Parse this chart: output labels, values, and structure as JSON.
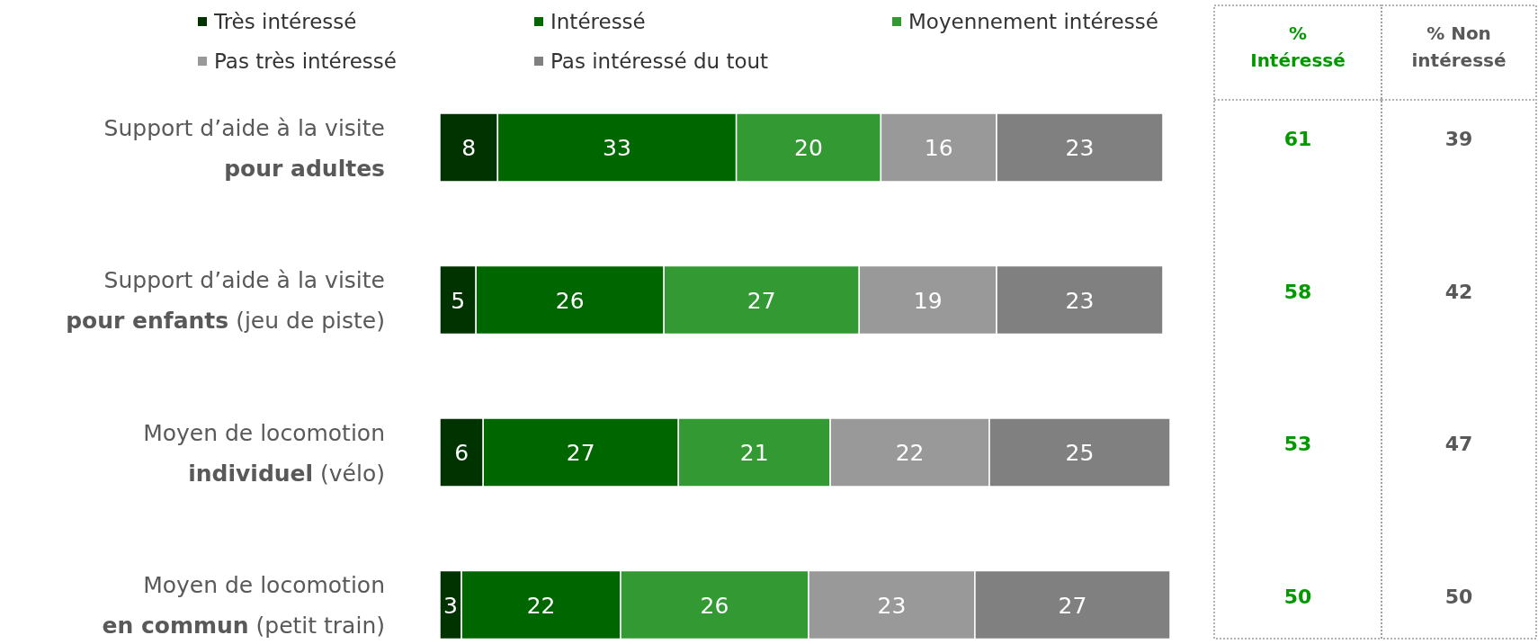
{
  "chart_data": [
    {
      "type": "bar",
      "orientation": "horizontal",
      "stacked": true,
      "data_labels": true,
      "legend": "top",
      "categories": [
        "Support d’aide à la visite\npour adultes",
        "Support d’aide à la visite\npour enfants (jeu de piste)",
        "Moyen de locomotion\nindividuel (vélo)",
        "Moyen de locomotion\nen commun (petit train)"
      ],
      "series": [
        {
          "name": "Très intéressé",
          "color": "#003300",
          "values": [
            8,
            5,
            6,
            3
          ]
        },
        {
          "name": "Intéressé",
          "color": "#006600",
          "values": [
            33,
            26,
            27,
            22
          ]
        },
        {
          "name": "Moyennement intéressé",
          "color": "#339933",
          "values": [
            20,
            27,
            21,
            26
          ]
        },
        {
          "name": "Pas très intéressé",
          "color": "#999999",
          "values": [
            16,
            19,
            22,
            23
          ]
        },
        {
          "name": "Pas intéressé du tout",
          "color": "#808080",
          "values": [
            23,
            23,
            25,
            27
          ]
        }
      ]
    },
    {
      "type": "other",
      "title": "%\nIntéressé",
      "annotations": [
        "61",
        "58",
        "53",
        "50"
      ]
    },
    {
      "type": "other",
      "title": "% Non\nintéressé",
      "annotations": [
        "39",
        "42",
        "47",
        "50"
      ]
    }
  ]
}
